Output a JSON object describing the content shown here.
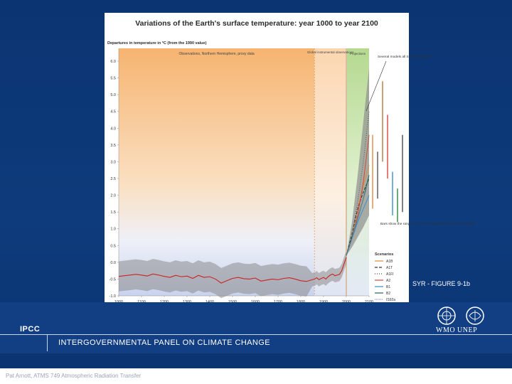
{
  "slide": {
    "organization_abbr": "IPCC",
    "organization_name": "INTERGOVERNMENTAL PANEL ON CLIMATE CHANGE",
    "logo_text": "WMO  UNEP",
    "figure_label": "SYR - FIGURE 9-1b",
    "footer": "Pat Arnott, ATMS 749 Atmospheric Radiation Transfer",
    "colors": {
      "background": "#0b3472",
      "band": "#123f83"
    }
  },
  "chart_data": {
    "type": "line",
    "title": "Variations of the Earth's surface temperature: year 1000 to year 2100",
    "ylabel": "Departures in temperature in °C (from the 1990 value)",
    "xlim": [
      1000,
      2100
    ],
    "ylim": [
      -1.0,
      6.0
    ],
    "x_ticks": [
      "1000",
      "1100",
      "1200",
      "1300",
      "1400",
      "1500",
      "1600",
      "1700",
      "1800",
      "1900",
      "2000",
      "2100"
    ],
    "y_ticks": [
      "-1.0",
      "-0.5",
      "0.0",
      "0.5",
      "1.0",
      "1.5",
      "2.0",
      "2.5",
      "3.0",
      "3.5",
      "4.0",
      "4.5",
      "5.0",
      "5.5",
      "6.0"
    ],
    "period_labels": {
      "proxy": "Observations, Northern Hemisphere, proxy data",
      "instrumental": "Global instrumental observations",
      "projections": "Projections"
    },
    "annotations": {
      "models_envelope": "Several models all SRES envelope",
      "bars_note": "Bars show the range in year 2100 produced by several models"
    },
    "legend_title": "Scenarios",
    "observed": {
      "x": [
        1000,
        1025,
        1050,
        1075,
        1100,
        1125,
        1150,
        1175,
        1200,
        1225,
        1250,
        1275,
        1300,
        1325,
        1350,
        1375,
        1400,
        1425,
        1450,
        1475,
        1500,
        1525,
        1550,
        1575,
        1600,
        1625,
        1650,
        1675,
        1700,
        1725,
        1750,
        1775,
        1800,
        1825,
        1850,
        1860,
        1870,
        1880,
        1890,
        1900,
        1910,
        1920,
        1930,
        1940,
        1950,
        1960,
        1970,
        1980,
        1990,
        2000
      ],
      "y": [
        -0.42,
        -0.4,
        -0.38,
        -0.36,
        -0.38,
        -0.41,
        -0.35,
        -0.38,
        -0.42,
        -0.45,
        -0.39,
        -0.43,
        -0.41,
        -0.48,
        -0.39,
        -0.45,
        -0.43,
        -0.5,
        -0.62,
        -0.55,
        -0.48,
        -0.45,
        -0.49,
        -0.5,
        -0.47,
        -0.56,
        -0.53,
        -0.5,
        -0.52,
        -0.48,
        -0.46,
        -0.5,
        -0.55,
        -0.57,
        -0.52,
        -0.5,
        -0.46,
        -0.52,
        -0.48,
        -0.45,
        -0.5,
        -0.43,
        -0.38,
        -0.35,
        -0.4,
        -0.38,
        -0.36,
        -0.25,
        -0.05,
        0.15
      ]
    },
    "series": [
      {
        "name": "A1B",
        "color": "#e08a3c",
        "dash": "",
        "x": [
          2000,
          2025,
          2050,
          2075,
          2100
        ],
        "y": [
          0.2,
          0.8,
          1.6,
          2.3,
          2.9
        ]
      },
      {
        "name": "A1T",
        "color": "#333333",
        "dash": "4,2",
        "x": [
          2000,
          2025,
          2050,
          2075,
          2100
        ],
        "y": [
          0.2,
          0.85,
          1.6,
          2.1,
          2.5
        ]
      },
      {
        "name": "A1FI",
        "color": "#555555",
        "dash": "1,2",
        "x": [
          2000,
          2025,
          2050,
          2075,
          2100
        ],
        "y": [
          0.2,
          0.85,
          1.8,
          3.0,
          4.5
        ]
      },
      {
        "name": "A2",
        "color": "#d8473c",
        "dash": "",
        "x": [
          2000,
          2025,
          2050,
          2075,
          2100
        ],
        "y": [
          0.2,
          0.7,
          1.4,
          2.4,
          3.8
        ]
      },
      {
        "name": "B1",
        "color": "#3a8fc6",
        "dash": "",
        "x": [
          2000,
          2025,
          2050,
          2075,
          2100
        ],
        "y": [
          0.2,
          0.7,
          1.2,
          1.6,
          2.0
        ]
      },
      {
        "name": "B2",
        "color": "#1f6b4f",
        "dash": "",
        "x": [
          2000,
          2025,
          2050,
          2075,
          2100
        ],
        "y": [
          0.2,
          0.75,
          1.3,
          1.9,
          2.6
        ]
      },
      {
        "name": "IS92a",
        "color": "#8d8dd8",
        "dash": "1,1",
        "x": [
          2000,
          2025,
          2050,
          2075,
          2100
        ],
        "y": [
          0.2,
          0.7,
          1.3,
          1.9,
          2.4
        ]
      }
    ],
    "envelope": {
      "x": [
        2000,
        2025,
        2050,
        2075,
        2100
      ],
      "low": [
        0.2,
        0.45,
        0.75,
        1.05,
        1.4
      ],
      "high": [
        0.2,
        1.2,
        2.6,
        4.2,
        5.8
      ]
    },
    "range_bars_2100": [
      {
        "name": "A1B",
        "color": "#e08a3c",
        "low": 1.6,
        "high": 3.8
      },
      {
        "name": "A1T",
        "color": "#555555",
        "low": 1.9,
        "high": 3.3
      },
      {
        "name": "A1FI",
        "color": "#b07a3a",
        "low": 3.0,
        "high": 5.4
      },
      {
        "name": "A2",
        "color": "#d8473c",
        "low": 2.5,
        "high": 4.4
      },
      {
        "name": "B1",
        "color": "#3a8fc6",
        "low": 1.4,
        "high": 2.7
      },
      {
        "name": "B2",
        "color": "#2c8a3a",
        "low": 1.2,
        "high": 2.2
      },
      {
        "name": "IS92a",
        "color": "#4a4a4a",
        "low": 1.5,
        "high": 3.8
      }
    ]
  }
}
